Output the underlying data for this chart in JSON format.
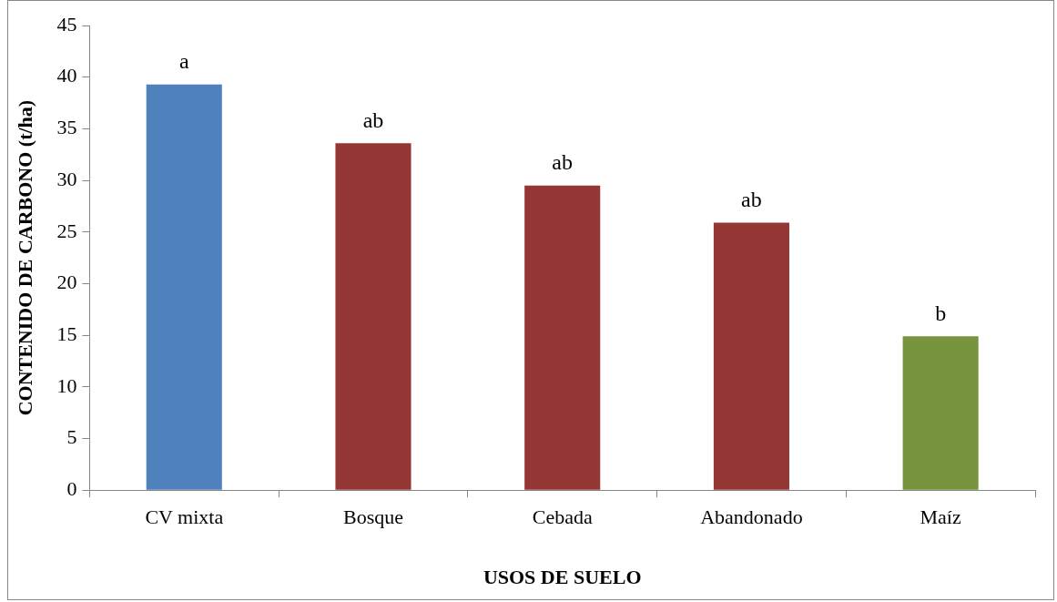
{
  "chart_data": {
    "type": "bar",
    "xlabel": "USOS DE SUELO",
    "ylabel": "CONTENIDO DE CARBONO (t/ha)",
    "categories": [
      "CV mixta",
      "Bosque",
      "Cebada",
      "Abandonado",
      "Maíz"
    ],
    "values": [
      39.3,
      33.6,
      29.5,
      25.9,
      14.9
    ],
    "colors": [
      "#4f81bd",
      "#943634",
      "#943634",
      "#943634",
      "#77933c"
    ],
    "ylim": [
      0,
      45
    ],
    "yticks": [
      0,
      5,
      10,
      15,
      20,
      25,
      30,
      35,
      40,
      45
    ],
    "grid": false,
    "legend": false,
    "annotations": [
      {
        "text": "a",
        "x": "CV mixta",
        "y": 39.3
      },
      {
        "text": "ab",
        "x": "Bosque",
        "y": 33.6
      },
      {
        "text": "ab",
        "x": "Cebada",
        "y": 29.5
      },
      {
        "text": "ab",
        "x": "Abandonado",
        "y": 25.9
      },
      {
        "text": "b",
        "x": "Maíz",
        "y": 14.9
      }
    ]
  }
}
